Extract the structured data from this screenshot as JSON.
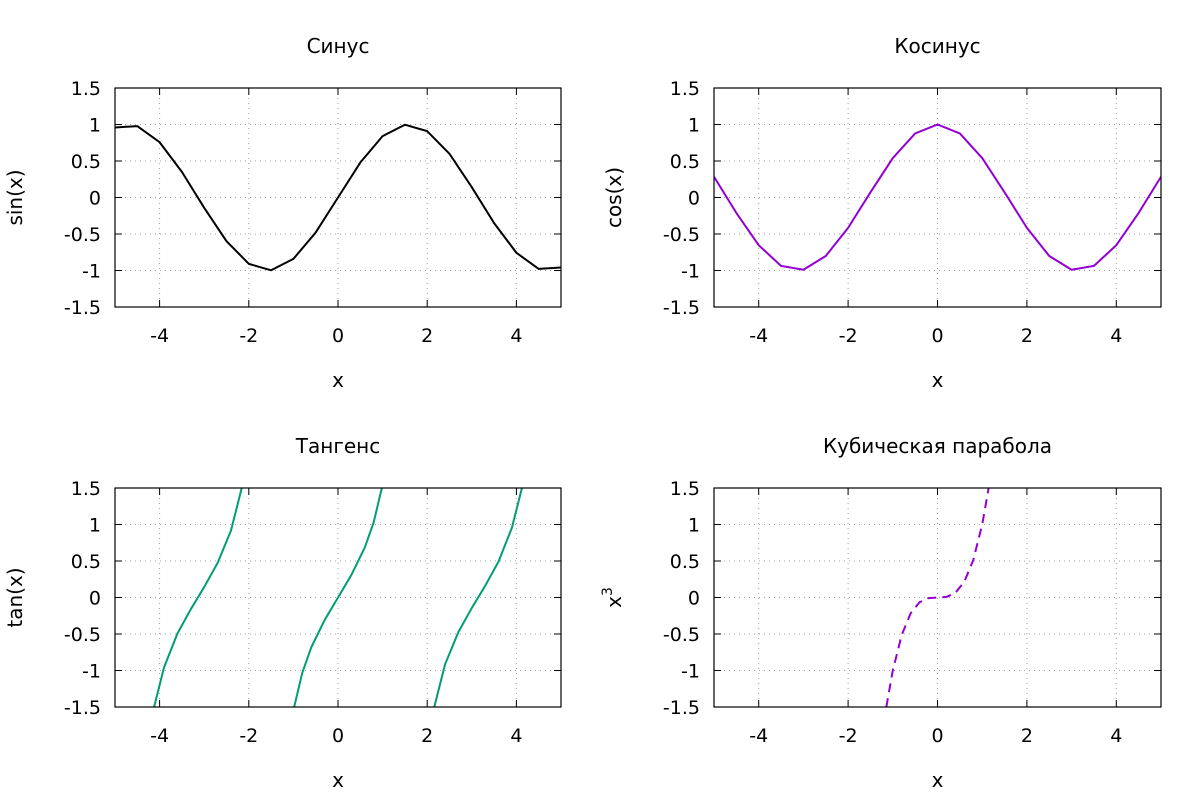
{
  "chart_data": [
    {
      "type": "line",
      "title": "Синус",
      "xlabel": "x",
      "ylabel": "sin(x)",
      "xlim": [
        -5,
        5
      ],
      "ylim": [
        -1.5,
        1.5
      ],
      "xticks": [
        -4,
        -2,
        0,
        2,
        4
      ],
      "yticks": [
        -1.5,
        -1,
        -0.5,
        0,
        0.5,
        1,
        1.5
      ],
      "xtick_labels": [
        "-4",
        "-2",
        "0",
        "2",
        "4"
      ],
      "ytick_labels": [
        "-1.5",
        "-1",
        "-0.5",
        "0",
        "0.5",
        "1",
        "1.5"
      ],
      "grid": true,
      "series": [
        {
          "color": "#000000",
          "dashed": false,
          "x": [
            -5.0,
            -4.5,
            -4.0,
            -3.5,
            -3.0,
            -2.5,
            -2.0,
            -1.5,
            -1.0,
            -0.5,
            0.0,
            0.5,
            1.0,
            1.5,
            2.0,
            2.5,
            3.0,
            3.5,
            4.0,
            4.5,
            5.0
          ],
          "y": [
            0.959,
            0.978,
            0.757,
            0.351,
            -0.141,
            -0.598,
            -0.909,
            -0.997,
            -0.841,
            -0.479,
            0.0,
            0.479,
            0.841,
            0.997,
            0.909,
            0.598,
            0.141,
            -0.351,
            -0.757,
            -0.978,
            -0.959
          ]
        }
      ]
    },
    {
      "type": "line",
      "title": "Косинус",
      "xlabel": "x",
      "ylabel": "cos(x)",
      "xlim": [
        -5,
        5
      ],
      "ylim": [
        -1.5,
        1.5
      ],
      "xticks": [
        -4,
        -2,
        0,
        2,
        4
      ],
      "yticks": [
        -1.5,
        -1,
        -0.5,
        0,
        0.5,
        1,
        1.5
      ],
      "xtick_labels": [
        "-4",
        "-2",
        "0",
        "2",
        "4"
      ],
      "ytick_labels": [
        "-1.5",
        "-1",
        "-0.5",
        "0",
        "0.5",
        "1",
        "1.5"
      ],
      "grid": true,
      "series": [
        {
          "color": "#9400d3",
          "dashed": false,
          "x": [
            -5.0,
            -4.5,
            -4.0,
            -3.5,
            -3.0,
            -2.5,
            -2.0,
            -1.5,
            -1.0,
            -0.5,
            0.0,
            0.5,
            1.0,
            1.5,
            2.0,
            2.5,
            3.0,
            3.5,
            4.0,
            4.5,
            5.0
          ],
          "y": [
            0.284,
            -0.211,
            -0.654,
            -0.936,
            -0.99,
            -0.801,
            -0.416,
            0.071,
            0.54,
            0.878,
            1.0,
            0.878,
            0.54,
            0.071,
            -0.416,
            -0.801,
            -0.99,
            -0.936,
            -0.654,
            -0.211,
            0.284
          ]
        }
      ]
    },
    {
      "type": "line",
      "title": "Тангенс",
      "xlabel": "x",
      "ylabel": "tan(x)",
      "xlim": [
        -5,
        5
      ],
      "ylim": [
        -1.5,
        1.5
      ],
      "xticks": [
        -4,
        -2,
        0,
        2,
        4
      ],
      "yticks": [
        -1.5,
        -1,
        -0.5,
        0,
        0.5,
        1,
        1.5
      ],
      "xtick_labels": [
        "-4",
        "-2",
        "0",
        "2",
        "4"
      ],
      "ytick_labels": [
        "-1.5",
        "-1",
        "-0.5",
        "0",
        "0.5",
        "1",
        "1.5"
      ],
      "grid": true,
      "series": [
        {
          "color": "#009e73",
          "dashed": false,
          "x": [
            -4.124,
            -3.9,
            -3.6,
            -3.3,
            -3.142,
            -3.0,
            -2.7,
            -2.4,
            -2.159
          ],
          "y": [
            -1.5,
            -0.957,
            -0.493,
            -0.16,
            0.0,
            0.143,
            0.473,
            0.916,
            1.5
          ]
        },
        {
          "color": "#009e73",
          "dashed": false,
          "x": [
            -0.983,
            -0.8,
            -0.6,
            -0.3,
            0.0,
            0.3,
            0.6,
            0.8,
            0.983
          ],
          "y": [
            -1.5,
            -1.03,
            -0.684,
            -0.309,
            0.0,
            0.309,
            0.684,
            1.03,
            1.5
          ]
        },
        {
          "color": "#009e73",
          "dashed": false,
          "x": [
            2.159,
            2.4,
            2.7,
            3.0,
            3.142,
            3.3,
            3.6,
            3.9,
            4.124
          ],
          "y": [
            -1.5,
            -0.916,
            -0.473,
            -0.143,
            0.0,
            0.16,
            0.493,
            0.957,
            1.5
          ]
        }
      ]
    },
    {
      "type": "line",
      "title": "Кубическая парабола",
      "xlabel": "x",
      "ylabel": "x",
      "ylabel_superscript": "3",
      "xlim": [
        -5,
        5
      ],
      "ylim": [
        -1.5,
        1.5
      ],
      "xticks": [
        -4,
        -2,
        0,
        2,
        4
      ],
      "yticks": [
        -1.5,
        -1,
        -0.5,
        0,
        0.5,
        1,
        1.5
      ],
      "xtick_labels": [
        "-4",
        "-2",
        "0",
        "2",
        "4"
      ],
      "ytick_labels": [
        "-1.5",
        "-1",
        "-0.5",
        "0",
        "0.5",
        "1",
        "1.5"
      ],
      "grid": true,
      "series": [
        {
          "color": "#9400d3",
          "dashed": true,
          "x": [
            -1.145,
            -1.0,
            -0.8,
            -0.6,
            -0.4,
            -0.2,
            0.0,
            0.2,
            0.4,
            0.6,
            0.8,
            1.0,
            1.145
          ],
          "y": [
            -1.5,
            -1.0,
            -0.512,
            -0.216,
            -0.064,
            -0.008,
            0.0,
            0.008,
            0.064,
            0.216,
            0.512,
            1.0,
            1.5
          ]
        }
      ]
    }
  ]
}
